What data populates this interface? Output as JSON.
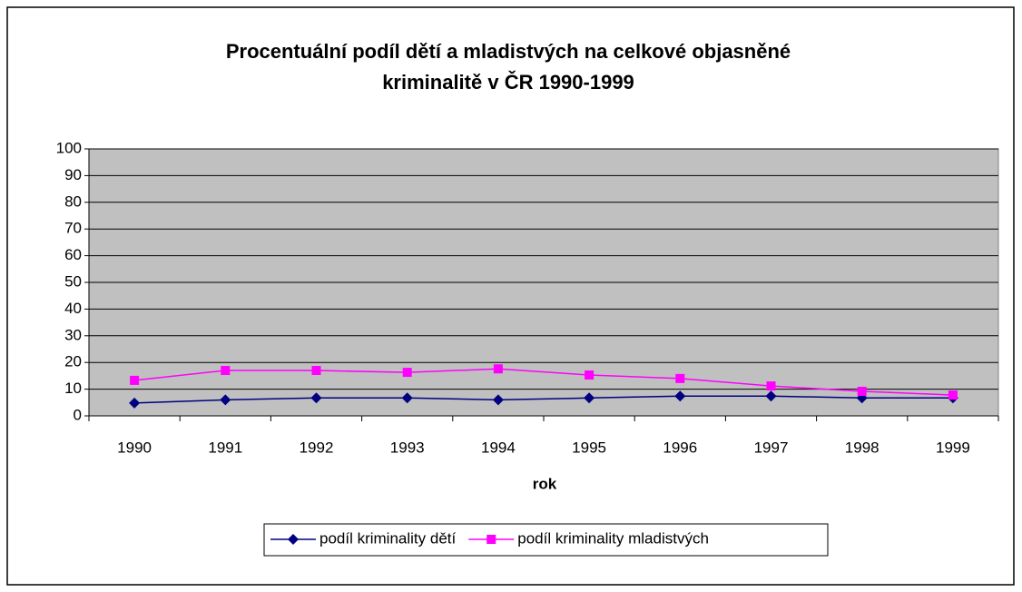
{
  "chart_data": {
    "type": "line",
    "title": [
      "Procentuální podíl dětí a mladistvých na celkové objasněné",
      "kriminalitě v ČR 1990-1999"
    ],
    "x_label": "rok",
    "categories": [
      "1990",
      "1991",
      "1992",
      "1993",
      "1994",
      "1995",
      "1996",
      "1997",
      "1998",
      "1999"
    ],
    "series": [
      {
        "name": "podíl kriminality dětí",
        "color": "#000080",
        "marker": "diamond",
        "values": [
          4.8,
          6,
          6.7,
          6.7,
          6,
          6.7,
          7.4,
          7.4,
          6.7,
          6.7
        ]
      },
      {
        "name": "podíl kriminality mladistvých",
        "color": "#ff00ff",
        "marker": "square",
        "values": [
          13.3,
          17,
          17,
          16.3,
          17.6,
          15.3,
          14,
          11.2,
          9.2,
          7.8
        ]
      }
    ],
    "ylim": [
      0,
      100
    ],
    "yticks": [
      0,
      10,
      20,
      30,
      40,
      50,
      60,
      70,
      80,
      90,
      100
    ],
    "grid": true,
    "legend": "bottom",
    "plot_background": "#c0c0c0"
  }
}
